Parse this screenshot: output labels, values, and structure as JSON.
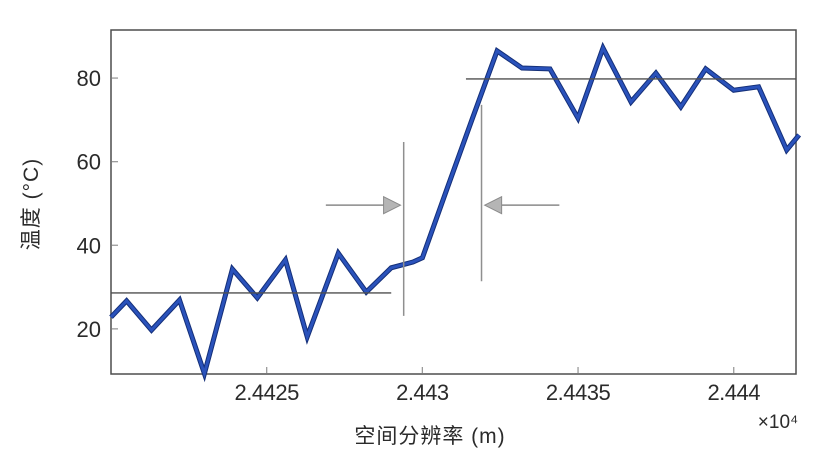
{
  "figure": {
    "background": "#ffffff",
    "axis_color": "#4d4d4d",
    "tick_color": "#9a9a9a",
    "text_color": "#2b2b2b"
  },
  "chart_data": {
    "type": "line",
    "title": "",
    "xlabel": "空间分辨率 (m)",
    "ylabel": "温度 (°C)",
    "x_scale_label": "×10⁴",
    "xlim": [
      2.442,
      2.4442
    ],
    "ylim": [
      9.2,
      91.5
    ],
    "grid": false,
    "legend_position": "none",
    "xticks": [
      2.4425,
      2.443,
      2.4435,
      2.444
    ],
    "xtick_labels": [
      "2.4425",
      "2.443",
      "2.4435",
      "2.444"
    ],
    "yticks": [
      20,
      40,
      60,
      80
    ],
    "ytick_labels": [
      "20",
      "40",
      "60",
      "80"
    ],
    "series": [
      {
        "color": "#2a52bb",
        "edge_color": "#142f78",
        "x": [
          2.442,
          2.44205,
          2.44213,
          2.44222,
          2.4423,
          2.44239,
          2.44247,
          2.44256,
          2.44263,
          2.44273,
          2.44282,
          2.4429,
          2.44297,
          2.443,
          2.44308,
          2.44316,
          2.44324,
          2.44332,
          2.44341,
          2.4435,
          2.44358,
          2.44367,
          2.44375,
          2.44383,
          2.44391,
          2.444,
          2.44408,
          2.44417,
          2.44421
        ],
        "y": [
          22.8,
          26.7,
          19.7,
          26.9,
          9.3,
          34.3,
          27.4,
          36.5,
          18.1,
          38.1,
          28.8,
          34.6,
          36.0,
          37.0,
          53.7,
          70.2,
          86.5,
          82.4,
          82.2,
          70.4,
          87.2,
          74.3,
          81.2,
          73.1,
          82.2,
          77.1,
          77.9,
          62.8,
          66.4
        ]
      }
    ],
    "annotations": {
      "lower_mean_line": {
        "y": 28.6,
        "x_start": 2.442,
        "x_end": 2.4429,
        "color": "#4f4f4f"
      },
      "upper_mean_line": {
        "y": 79.8,
        "x_start": 2.44314,
        "x_end": 2.4442,
        "color": "#4f4f4f"
      },
      "left_marker_line": {
        "x": 2.44294,
        "y_start": 23.1,
        "y_end": 64.7,
        "color": "#8f8f8f"
      },
      "right_marker_line": {
        "x": 2.44319,
        "y_start": 31.4,
        "y_end": 73.6,
        "color": "#8f8f8f"
      },
      "left_arrow": {
        "y": 49.6,
        "x_tail": 2.44269,
        "x_head": 2.44293,
        "direction": "right",
        "shaft_color": "#8a8a8a",
        "head_fill": "#b5b5b5"
      },
      "right_arrow": {
        "y": 49.6,
        "x_tail": 2.44344,
        "x_head": 2.4432,
        "direction": "left",
        "shaft_color": "#8a8a8a",
        "head_fill": "#b5b5b5"
      }
    }
  }
}
